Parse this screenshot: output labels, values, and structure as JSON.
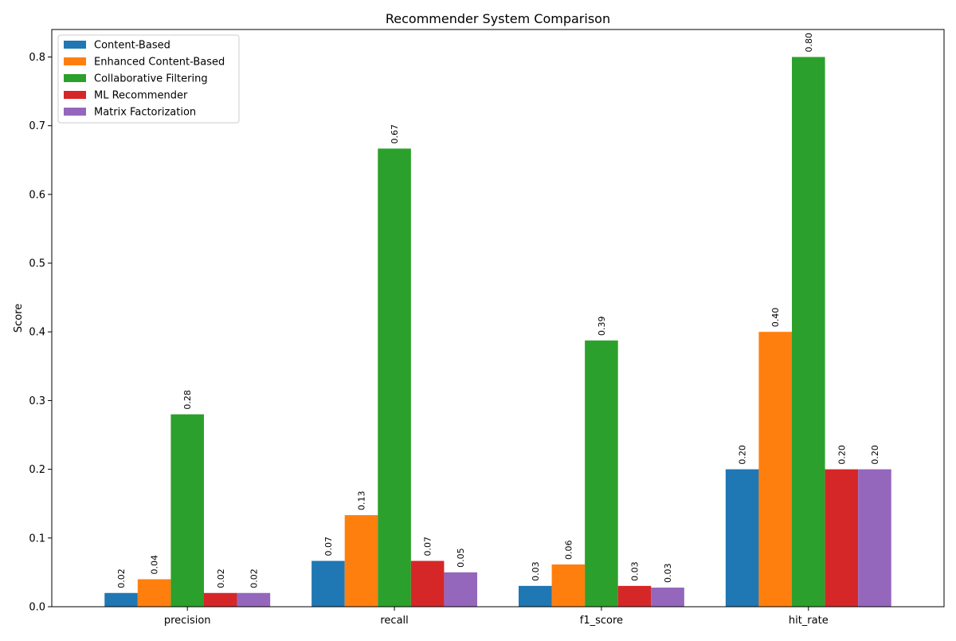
{
  "chart_data": {
    "type": "bar",
    "title": "Recommender System Comparison",
    "xlabel": "",
    "ylabel": "Score",
    "ylim": [
      0,
      0.84
    ],
    "yticks": [
      0.0,
      0.1,
      0.2,
      0.3,
      0.4,
      0.5,
      0.6,
      0.7,
      0.8
    ],
    "ytick_labels": [
      "0.0",
      "0.1",
      "0.2",
      "0.3",
      "0.4",
      "0.5",
      "0.6",
      "0.7",
      "0.8"
    ],
    "grid": false,
    "legend_position": "top-left",
    "categories": [
      "precision",
      "recall",
      "f1_score",
      "hit_rate"
    ],
    "series": [
      {
        "name": "Content-Based",
        "color": "#1f77b4",
        "values": [
          0.02,
          0.0667,
          0.0303,
          0.2
        ],
        "labels": [
          "0.02",
          "0.07",
          "0.03",
          "0.20"
        ]
      },
      {
        "name": "Enhanced Content-Based",
        "color": "#ff7f0e",
        "values": [
          0.04,
          0.1333,
          0.0615,
          0.4
        ],
        "labels": [
          "0.04",
          "0.13",
          "0.06",
          "0.40"
        ]
      },
      {
        "name": "Collaborative Filtering",
        "color": "#2ca02c",
        "values": [
          0.28,
          0.6667,
          0.3874,
          0.8
        ],
        "labels": [
          "0.28",
          "0.67",
          "0.39",
          "0.80"
        ]
      },
      {
        "name": "ML Recommender",
        "color": "#d62728",
        "values": [
          0.02,
          0.0667,
          0.0303,
          0.2
        ],
        "labels": [
          "0.02",
          "0.07",
          "0.03",
          "0.20"
        ]
      },
      {
        "name": "Matrix Factorization",
        "color": "#9467bd",
        "values": [
          0.02,
          0.05,
          0.0278,
          0.2
        ],
        "labels": [
          "0.02",
          "0.05",
          "0.03",
          "0.20"
        ]
      }
    ]
  }
}
